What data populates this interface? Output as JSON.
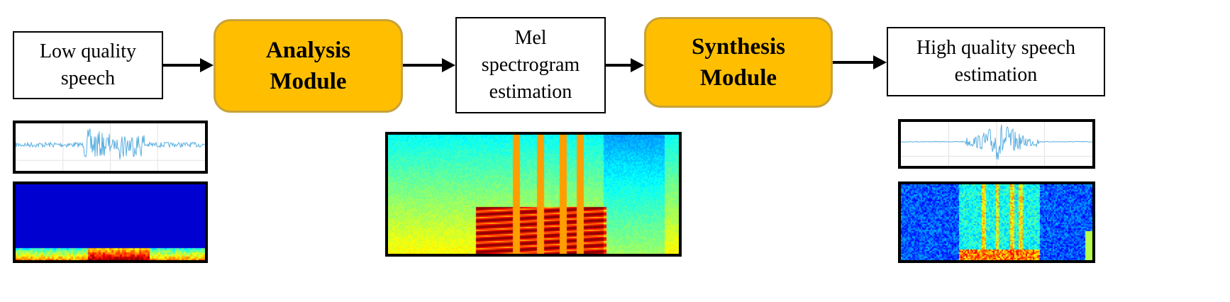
{
  "pipeline": {
    "input_label": "Low quality\nspeech",
    "analysis_label": "Analysis\nModule",
    "mel_label": "Mel\nspectrogram\nestimation",
    "synthesis_label": "Synthesis\nModule",
    "output_label": "High quality speech\nestimation"
  },
  "colors": {
    "module_fill": "#ffbf00",
    "module_border": "#c9a23a",
    "waveform": "#5aaee0",
    "spectrogram_background": "#00007a"
  }
}
